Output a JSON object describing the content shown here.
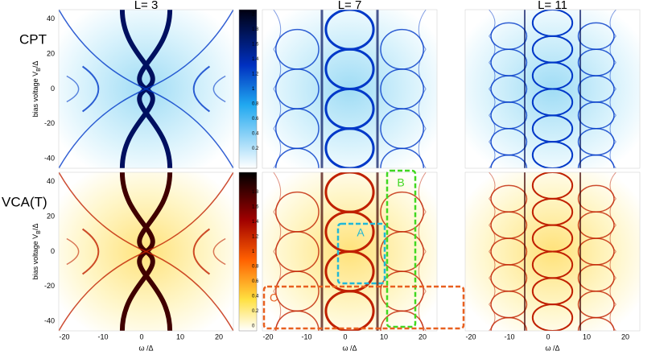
{
  "columns": [
    {
      "title": "L= 3"
    },
    {
      "title": "L= 7"
    },
    {
      "title": "L= 11"
    }
  ],
  "rows": [
    {
      "label": "CPT",
      "y_axis_label": {
        "main": "bias voltage V",
        "sub": "B",
        "rest": "/Δ"
      },
      "y_ticks": [
        40,
        20,
        0,
        -20,
        -40
      ],
      "colorbar_ticks": [
        2,
        1.8,
        1.6,
        1.4,
        1.2,
        1,
        0.8,
        0.6,
        0.4,
        0.2
      ]
    },
    {
      "label": "VCA(T)",
      "y_axis_label": {
        "main": "bias voltage V",
        "sub": "B",
        "rest": "/Δ"
      },
      "y_ticks": [
        40,
        20,
        0,
        -20,
        -40
      ],
      "colorbar_ticks": [
        2,
        1.8,
        1.6,
        1.4,
        1.2,
        1,
        0.8,
        0.6,
        0.4,
        0.2,
        0
      ]
    }
  ],
  "x_axis": {
    "label": "ω /Δ",
    "ticks": [
      -20,
      -10,
      0,
      10,
      20
    ]
  },
  "annotations": [
    {
      "label": "A"
    },
    {
      "label": "B"
    },
    {
      "label": "C"
    }
  ]
}
